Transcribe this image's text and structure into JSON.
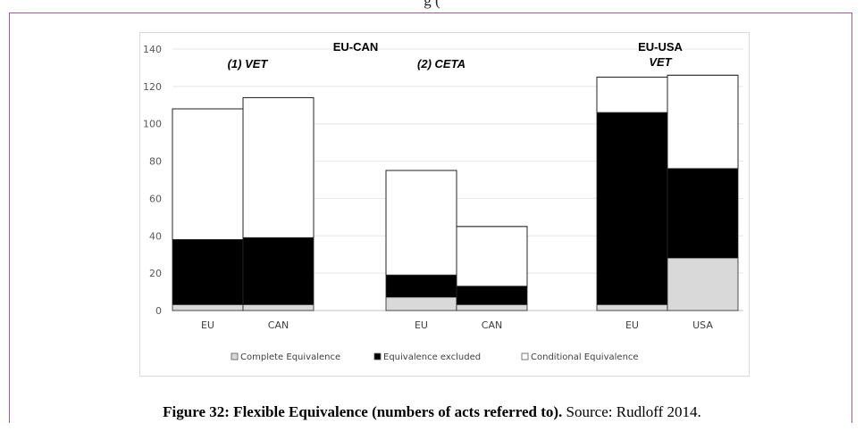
{
  "figure": {
    "header_fragment": "g                              (",
    "caption_bold": "Figure 32: Flexible Equivalence (numbers of acts referred to).",
    "caption_rest": " Source: Rudloff 2014."
  },
  "colors": {
    "frame": "#a35a96",
    "complete": "#d9d9d9",
    "excluded": "#000000",
    "conditional": "#ffffff",
    "bar_outline": "#262626",
    "grid": "#e6e6e6"
  },
  "chart_data": {
    "type": "bar",
    "stacked": true,
    "ylim": [
      0,
      140
    ],
    "yticks": [
      0,
      20,
      40,
      60,
      80,
      100,
      120,
      140
    ],
    "grid": true,
    "legend_position": "bottom",
    "groups": [
      {
        "title_lines": [
          "(1) VET"
        ],
        "italic": true
      },
      {
        "title_lines": [
          "(2) CETA"
        ],
        "italic": true
      },
      {
        "title_lines": [
          "EU-USA",
          "VET"
        ],
        "italic_lines": [
          false,
          true
        ]
      }
    ],
    "super_label": "EU-CAN",
    "categories": [
      "EU",
      "CAN",
      "EU",
      "CAN",
      "EU",
      "USA"
    ],
    "category_group": [
      0,
      0,
      1,
      1,
      2,
      2
    ],
    "series": [
      {
        "name": "Complete Equivalence",
        "values": [
          3,
          3,
          7,
          3,
          3,
          28
        ]
      },
      {
        "name": "Equivalence excluded",
        "values": [
          35,
          36,
          12,
          10,
          103,
          48
        ]
      },
      {
        "name": "Conditional Equivalence",
        "values": [
          70,
          75,
          56,
          32,
          19,
          50
        ]
      }
    ]
  }
}
